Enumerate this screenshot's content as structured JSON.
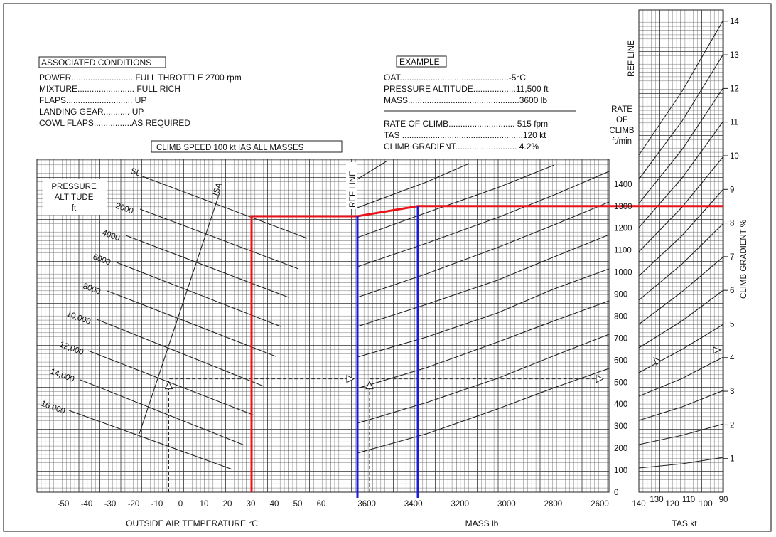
{
  "associated_conditions": {
    "title": "ASSOCIATED CONDITIONS",
    "lines": [
      "POWER.......................... FULL THROTTLE  2700 rpm",
      "MIXTURE........................ FULL RICH",
      "FLAPS............................ UP",
      "LANDING GEAR........... UP",
      "COWL FLAPS................AS REQUIRED"
    ]
  },
  "climb_speed_label": "CLIMB SPEED  100 kt  IAS    ALL MASSES",
  "example": {
    "title": "EXAMPLE",
    "lines": [
      "OAT..............................................-5",
      "PRESSURE ALTITUDE..................11,500 ft",
      "MASS...............................................3600 lb"
    ],
    "oat_unit": "°C",
    "results": [
      "RATE OF CLIMB............................ 515 fpm",
      "TAS ...................................................120 kt",
      "CLIMB GRADIENT.......................... 4.2%"
    ]
  },
  "labels": {
    "pressure_altitude": [
      "PRESSURE",
      "ALTITUDE",
      "ft"
    ],
    "rate_of_climb": [
      "RATE",
      "OF",
      "CLIMB",
      "ft/min"
    ],
    "ref_line_mass": "REF LINE",
    "ref_line_tas": "REF LINE",
    "climb_gradient": "CLIMB GRADIENT  %",
    "isa": "ISA"
  },
  "chart_data": {
    "type": "line",
    "panels": {
      "temperature": {
        "xlabel": "OUTSIDE AIR TEMPERATURE  °C",
        "xticks": [
          "-50",
          "-40",
          "-30",
          "-20",
          "-10",
          "0",
          "10",
          "20",
          "30",
          "40",
          "50",
          "60"
        ],
        "altitude_lines": [
          {
            "label": "SL",
            "alt_ft": 0
          },
          {
            "label": "2000",
            "alt_ft": 2000
          },
          {
            "label": "4000",
            "alt_ft": 4000
          },
          {
            "label": "6000",
            "alt_ft": 6000
          },
          {
            "label": "8000",
            "alt_ft": 8000
          },
          {
            "label": "10,000",
            "alt_ft": 10000
          },
          {
            "label": "12,000",
            "alt_ft": 12000
          },
          {
            "label": "14,000",
            "alt_ft": 14000
          },
          {
            "label": "16,000",
            "alt_ft": 16000
          }
        ]
      },
      "mass": {
        "xlabel": "MASS lb",
        "xticks": [
          "3600",
          "3400",
          "3200",
          "3000",
          "2800",
          "2600"
        ]
      },
      "rate_of_climb_axis": {
        "ylabel": "RATE OF CLIMB ft/min",
        "yticks": [
          "0",
          "100",
          "200",
          "300",
          "400",
          "500",
          "600",
          "700",
          "800",
          "900",
          "1000",
          "1100",
          "1200",
          "1300",
          "1400"
        ],
        "ylim": [
          0,
          1400
        ]
      },
      "tas": {
        "xlabel": "TAS kt",
        "xticks": [
          "140",
          "130",
          "120",
          "110",
          "100",
          "90"
        ],
        "gradient_ticks": [
          "1",
          "2",
          "3",
          "4",
          "5",
          "6",
          "7",
          "8",
          "9",
          "10",
          "11",
          "12",
          "13",
          "14"
        ]
      }
    },
    "example_path": {
      "oat_c": -5,
      "pressure_altitude_ft": 11500,
      "mass_lb": 3600,
      "rate_of_climb_fpm": 515,
      "tas_kt": 120,
      "climb_gradient_pct": 4.2
    },
    "red_path_roc_fpm": 1300,
    "colors": {
      "red": "#e8141a",
      "blue": "#1a1ad8",
      "grid": "#555555"
    }
  }
}
